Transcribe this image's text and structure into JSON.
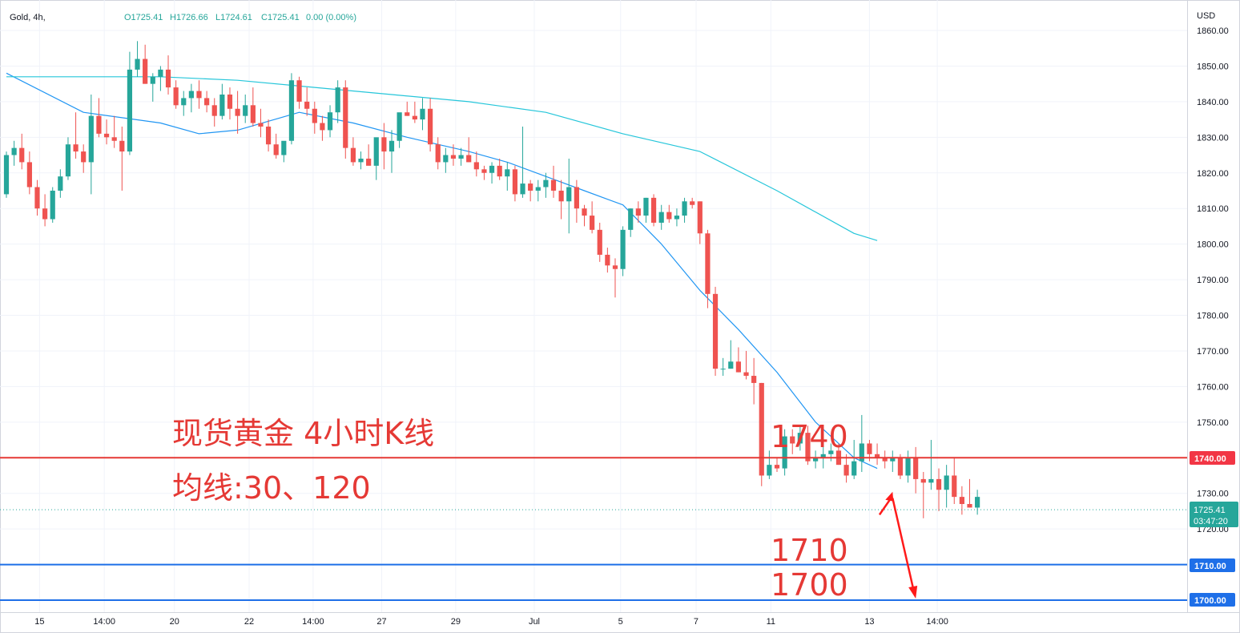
{
  "header": {
    "symbol": "Gold, 4h,",
    "open": "O1725.41",
    "high": "H1726.66",
    "low": "L1724.61",
    "close": "C1725.41",
    "change": "0.00 (0.00%)"
  },
  "colors": {
    "up": "#26a69a",
    "down": "#ef5350",
    "ma30": "#2196f3",
    "ma120": "#26c6da",
    "red_level": "#e53935",
    "blue_level": "#1e6fe8",
    "arrow": "#ff1a1a"
  },
  "annotations": {
    "title": "现货黄金 4小时K线",
    "ma_note": "均线:30、120",
    "level_1740": "1740",
    "level_1710": "1710",
    "level_1700": "1700"
  },
  "price_labels": {
    "currency": "USD",
    "current_price": "1725.41",
    "countdown": "03:47:20",
    "line_1740": "1740.00",
    "line_1710": "1710.00",
    "line_1700": "1700.00"
  },
  "chart_data": {
    "type": "candlestick",
    "title": "Gold, 4h,",
    "ylabel": "USD",
    "ylim": [
      1700,
      1862
    ],
    "y_ticks": [
      "1860.00",
      "1850.00",
      "1840.00",
      "1830.00",
      "1820.00",
      "1810.00",
      "1800.00",
      "1790.00",
      "1780.00",
      "1770.00",
      "1760.00",
      "1750.00",
      "1740.00",
      "1730.00",
      "1720.00",
      "1710.00",
      "1700.00"
    ],
    "x_ticks": [
      {
        "label": "15",
        "bar": 4.3
      },
      {
        "label": "14:00",
        "bar": 12.7
      },
      {
        "label": "20",
        "bar": 21.8
      },
      {
        "label": "22",
        "bar": 31.5
      },
      {
        "label": "14:00",
        "bar": 39.8
      },
      {
        "label": "27",
        "bar": 48.7
      },
      {
        "label": "29",
        "bar": 58.3
      },
      {
        "label": "Jul",
        "bar": 68.5
      },
      {
        "label": "5",
        "bar": 79.7
      },
      {
        "label": "7",
        "bar": 89.5
      },
      {
        "label": "11",
        "bar": 99.2
      },
      {
        "label": "13",
        "bar": 112.0
      },
      {
        "label": "14:00",
        "bar": 120.8
      }
    ],
    "series": [
      {
        "name": "Gold 4h",
        "ohlc": [
          [
            1814,
            1826,
            1813,
            1825
          ],
          [
            1825,
            1829,
            1822,
            1827
          ],
          [
            1827,
            1831,
            1821,
            1823
          ],
          [
            1823,
            1826,
            1814,
            1816
          ],
          [
            1816,
            1818,
            1808,
            1810
          ],
          [
            1810,
            1814,
            1805,
            1807
          ],
          [
            1807,
            1816,
            1806,
            1815
          ],
          [
            1815,
            1821,
            1813,
            1819
          ],
          [
            1819,
            1830,
            1818,
            1828
          ],
          [
            1828,
            1837,
            1824,
            1826
          ],
          [
            1826,
            1828,
            1820,
            1823
          ],
          [
            1823,
            1842,
            1814,
            1836
          ],
          [
            1836,
            1841,
            1830,
            1831
          ],
          [
            1831,
            1835,
            1828,
            1830
          ],
          [
            1830,
            1836,
            1827,
            1829
          ],
          [
            1829,
            1833,
            1815,
            1826
          ],
          [
            1826,
            1854,
            1825,
            1849
          ],
          [
            1849,
            1857,
            1847,
            1852
          ],
          [
            1852,
            1856,
            1845,
            1845
          ],
          [
            1845,
            1848,
            1840,
            1847
          ],
          [
            1847,
            1850,
            1843,
            1849
          ],
          [
            1849,
            1853,
            1842,
            1844
          ],
          [
            1844,
            1846,
            1838,
            1839
          ],
          [
            1839,
            1843,
            1836,
            1841
          ],
          [
            1841,
            1845,
            1837,
            1843
          ],
          [
            1843,
            1846,
            1838,
            1841
          ],
          [
            1841,
            1843,
            1837,
            1839
          ],
          [
            1839,
            1841,
            1833,
            1836
          ],
          [
            1836,
            1845,
            1835,
            1842
          ],
          [
            1842,
            1844,
            1835,
            1838
          ],
          [
            1838,
            1843,
            1831,
            1836
          ],
          [
            1836,
            1842,
            1834,
            1839
          ],
          [
            1839,
            1844,
            1833,
            1834
          ],
          [
            1834,
            1838,
            1830,
            1833
          ],
          [
            1833,
            1835,
            1826,
            1828
          ],
          [
            1828,
            1831,
            1824,
            1825
          ],
          [
            1825,
            1828,
            1823,
            1829
          ],
          [
            1829,
            1848,
            1828,
            1846
          ],
          [
            1846,
            1847,
            1838,
            1840
          ],
          [
            1840,
            1844,
            1836,
            1838
          ],
          [
            1838,
            1840,
            1831,
            1834
          ],
          [
            1834,
            1836,
            1829,
            1832
          ],
          [
            1832,
            1839,
            1830,
            1837
          ],
          [
            1837,
            1846,
            1834,
            1844
          ],
          [
            1844,
            1846,
            1824,
            1827
          ],
          [
            1827,
            1830,
            1822,
            1823
          ],
          [
            1823,
            1826,
            1821,
            1824
          ],
          [
            1824,
            1828,
            1823,
            1822
          ],
          [
            1822,
            1829,
            1818,
            1830
          ],
          [
            1830,
            1834,
            1821,
            1826
          ],
          [
            1826,
            1832,
            1820,
            1829
          ],
          [
            1829,
            1836,
            1827,
            1837
          ],
          [
            1837,
            1840,
            1836,
            1836
          ],
          [
            1836,
            1840,
            1834,
            1835
          ],
          [
            1835,
            1841,
            1832,
            1838
          ],
          [
            1838,
            1841,
            1826,
            1828
          ],
          [
            1828,
            1830,
            1821,
            1823
          ],
          [
            1823,
            1827,
            1820,
            1825
          ],
          [
            1825,
            1828,
            1822,
            1824
          ],
          [
            1824,
            1827,
            1822,
            1825
          ],
          [
            1825,
            1830,
            1823,
            1823
          ],
          [
            1823,
            1826,
            1819,
            1821
          ],
          [
            1821,
            1822,
            1818,
            1820
          ],
          [
            1820,
            1823,
            1817,
            1822
          ],
          [
            1822,
            1824,
            1818,
            1819
          ],
          [
            1819,
            1823,
            1815,
            1821
          ],
          [
            1821,
            1822,
            1812,
            1814
          ],
          [
            1814,
            1833,
            1813,
            1817
          ],
          [
            1817,
            1818,
            1812,
            1815
          ],
          [
            1815,
            1818,
            1812,
            1816
          ],
          [
            1816,
            1820,
            1813,
            1818
          ],
          [
            1818,
            1822,
            1813,
            1815
          ],
          [
            1815,
            1818,
            1807,
            1812
          ],
          [
            1812,
            1824,
            1803,
            1816
          ],
          [
            1816,
            1818,
            1806,
            1810
          ],
          [
            1810,
            1811,
            1805,
            1808
          ],
          [
            1808,
            1812,
            1803,
            1804
          ],
          [
            1804,
            1806,
            1795,
            1797
          ],
          [
            1797,
            1799,
            1792,
            1794
          ],
          [
            1794,
            1796,
            1785,
            1793
          ],
          [
            1793,
            1805,
            1791,
            1804
          ],
          [
            1804,
            1810,
            1802,
            1810
          ],
          [
            1810,
            1812,
            1806,
            1808
          ],
          [
            1808,
            1813,
            1806,
            1813
          ],
          [
            1813,
            1814,
            1805,
            1806
          ],
          [
            1806,
            1811,
            1804,
            1809
          ],
          [
            1809,
            1811,
            1806,
            1807
          ],
          [
            1807,
            1810,
            1805,
            1808
          ],
          [
            1808,
            1813,
            1806,
            1812
          ],
          [
            1812,
            1813,
            1810,
            1811
          ],
          [
            1812,
            1812,
            1800,
            1803
          ],
          [
            1803,
            1804,
            1782,
            1786
          ],
          [
            1786,
            1788,
            1763,
            1765
          ],
          [
            1765,
            1768,
            1763,
            1765
          ],
          [
            1765,
            1773,
            1765,
            1767
          ],
          [
            1767,
            1771,
            1764,
            1764
          ],
          [
            1764,
            1770,
            1762,
            1763
          ],
          [
            1763,
            1768,
            1755,
            1761
          ],
          [
            1761,
            1761,
            1732,
            1735
          ],
          [
            1735,
            1742,
            1734,
            1738
          ],
          [
            1738,
            1740,
            1736,
            1737
          ],
          [
            1737,
            1748,
            1735,
            1746
          ],
          [
            1746,
            1748,
            1741,
            1744
          ],
          [
            1744,
            1749,
            1742,
            1747
          ],
          [
            1747,
            1749,
            1738,
            1739
          ],
          [
            1739,
            1742,
            1737,
            1740
          ],
          [
            1740,
            1744,
            1737,
            1741
          ],
          [
            1741,
            1744,
            1739,
            1742
          ],
          [
            1742,
            1744,
            1738,
            1738
          ],
          [
            1738,
            1741,
            1733,
            1735
          ],
          [
            1735,
            1745,
            1734,
            1739
          ],
          [
            1739,
            1752,
            1736,
            1744
          ],
          [
            1744,
            1745,
            1739,
            1741
          ],
          [
            1741,
            1744,
            1738,
            1740
          ],
          [
            1740,
            1742,
            1737,
            1739
          ],
          [
            1739,
            1742,
            1736,
            1740
          ],
          [
            1740,
            1741,
            1734,
            1735
          ],
          [
            1735,
            1742,
            1733,
            1740
          ],
          [
            1740,
            1743,
            1730,
            1734
          ],
          [
            1734,
            1736,
            1723,
            1733
          ],
          [
            1733,
            1745,
            1731,
            1734
          ],
          [
            1734,
            1737,
            1725,
            1731
          ],
          [
            1731,
            1738,
            1726,
            1735
          ],
          [
            1735,
            1740,
            1727,
            1729
          ],
          [
            1729,
            1732,
            1724,
            1727
          ],
          [
            1727,
            1734,
            1726,
            1726
          ],
          [
            1726,
            1731,
            1724,
            1729
          ]
        ]
      },
      {
        "name": "MA30",
        "x": [
          0,
          10,
          20,
          25,
          30,
          38,
          45,
          52,
          60,
          65,
          70,
          75,
          80,
          85,
          90,
          95,
          100,
          105,
          110,
          113
        ],
        "values": [
          1848,
          1837,
          1834,
          1831,
          1832,
          1837,
          1834,
          1830,
          1826,
          1823,
          1819,
          1815,
          1811,
          1800,
          1787,
          1776,
          1764,
          1750,
          1740,
          1737
        ]
      },
      {
        "name": "MA120",
        "x": [
          0,
          10,
          20,
          30,
          40,
          50,
          60,
          70,
          80,
          90,
          100,
          110,
          113
        ],
        "values": [
          1847,
          1847,
          1847,
          1846,
          1844,
          1842,
          1840,
          1837,
          1831,
          1826,
          1815,
          1803,
          1801
        ]
      }
    ],
    "horizontal_lines": [
      {
        "value": 1740,
        "color": "red",
        "label": "1740.00"
      },
      {
        "value": 1710,
        "color": "blue",
        "label": "1710.00"
      },
      {
        "value": 1700,
        "color": "blue",
        "label": "1700.00"
      },
      {
        "value": 1725.41,
        "color": "teal-dotted",
        "label": "1725.41"
      }
    ],
    "arrow_path": [
      {
        "bar": 113.3,
        "value": 1724
      },
      {
        "bar": 115.0,
        "value": 1730
      },
      {
        "bar": 118.0,
        "value": 1700
      }
    ]
  }
}
